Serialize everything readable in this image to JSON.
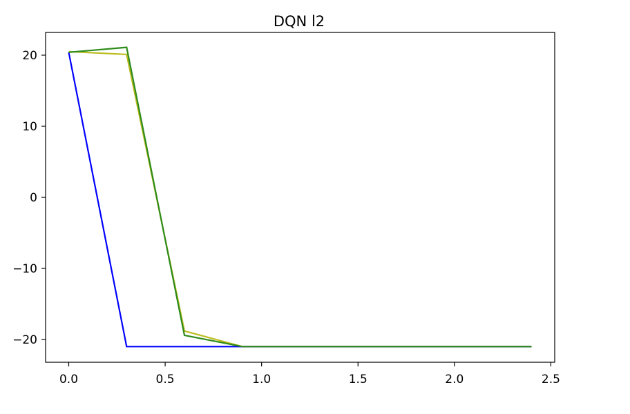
{
  "chart_data": {
    "type": "line",
    "title": "DQN l2",
    "xlabel": "",
    "ylabel": "",
    "xlim": [
      -0.12,
      2.52
    ],
    "ylim": [
      -23.2,
      23.2
    ],
    "x_ticks": [
      0.0,
      0.5,
      1.0,
      1.5,
      2.0,
      2.5
    ],
    "x_tick_labels": [
      "0.0",
      "0.5",
      "1.0",
      "1.5",
      "2.0",
      "2.5"
    ],
    "y_ticks": [
      20,
      10,
      0,
      -10,
      -20
    ],
    "y_tick_labels": [
      "20",
      "10",
      "0",
      "−10",
      "−20"
    ],
    "grid": false,
    "legend": "none",
    "series": [
      {
        "color": "#bcbd22",
        "x": [
          0.0,
          0.3,
          0.6,
          0.9,
          1.2,
          1.5,
          1.8,
          2.1,
          2.4
        ],
        "y": [
          20.5,
          20.1,
          -18.8,
          -21.0,
          -21.0,
          -21.0,
          -21.0,
          -21.0,
          -21.0
        ]
      },
      {
        "color": "#0000ff",
        "x": [
          0.0,
          0.3,
          0.6,
          0.9,
          1.2,
          1.5,
          1.8,
          2.1,
          2.4
        ],
        "y": [
          20.4,
          -21.0,
          -21.0,
          -21.0,
          -21.0,
          -21.0,
          -21.0,
          -21.0,
          -21.0
        ]
      },
      {
        "color": "#2e8b1a",
        "x": [
          0.0,
          0.3,
          0.6,
          0.9,
          1.2,
          1.5,
          1.8,
          2.1,
          2.4
        ],
        "y": [
          20.4,
          21.1,
          -19.4,
          -21.0,
          -21.0,
          -21.0,
          -21.0,
          -21.0,
          -21.0
        ]
      }
    ]
  }
}
